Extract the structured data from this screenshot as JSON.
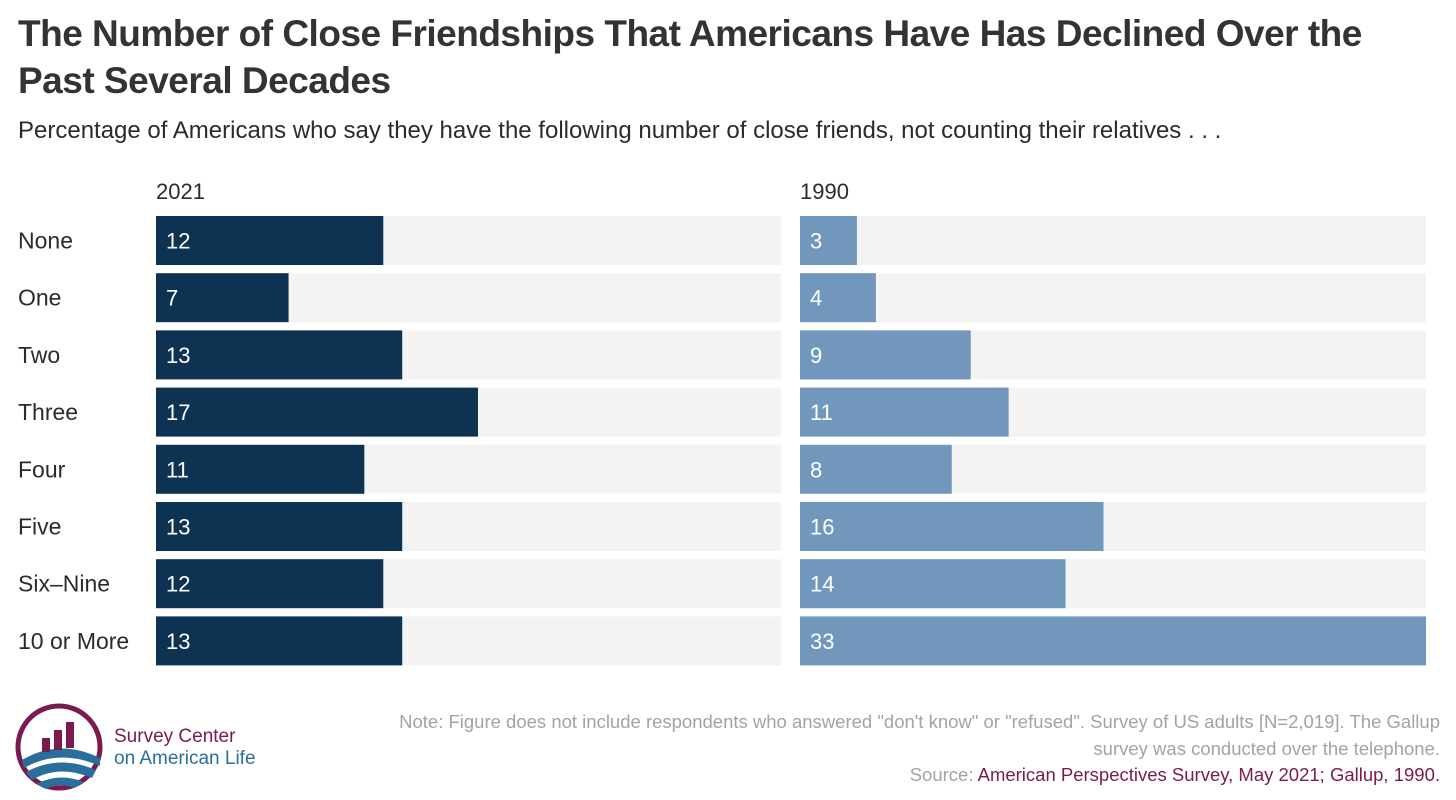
{
  "title": "The Number of Close Friendships That Americans Have Has Declined Over the Past Several Decades",
  "subtitle": "Percentage of Americans who say they have the following number of close friends, not counting their relatives . . .",
  "chart_data": {
    "type": "bar",
    "orientation": "horizontal",
    "categories": [
      "None",
      "One",
      "Two",
      "Three",
      "Four",
      "Five",
      "Six–Nine",
      "10 or More"
    ],
    "series": [
      {
        "name": "2021",
        "values": [
          12,
          7,
          13,
          17,
          11,
          13,
          12,
          13
        ],
        "color": "#0d3252"
      },
      {
        "name": "1990",
        "values": [
          3,
          4,
          9,
          11,
          8,
          16,
          14,
          33
        ],
        "color": "#7198bc"
      }
    ],
    "xlim": [
      0,
      33
    ],
    "track_color": "#f3f3f3",
    "label_color": "#ffffff"
  },
  "note": "Note: Figure does not include respondents who answered \"don't know\" or \"refused\". Survey of US adults [N=2,019]. The Gallup survey was conducted over the telephone.",
  "source_label": "Source:",
  "source_text": "American Perspectives Survey, May 2021; Gallup, 1990.",
  "logo": {
    "line1": "Survey Center",
    "line2": "on American Life",
    "colors": {
      "magenta": "#7a1b4f",
      "blue": "#2a6f9b"
    }
  }
}
